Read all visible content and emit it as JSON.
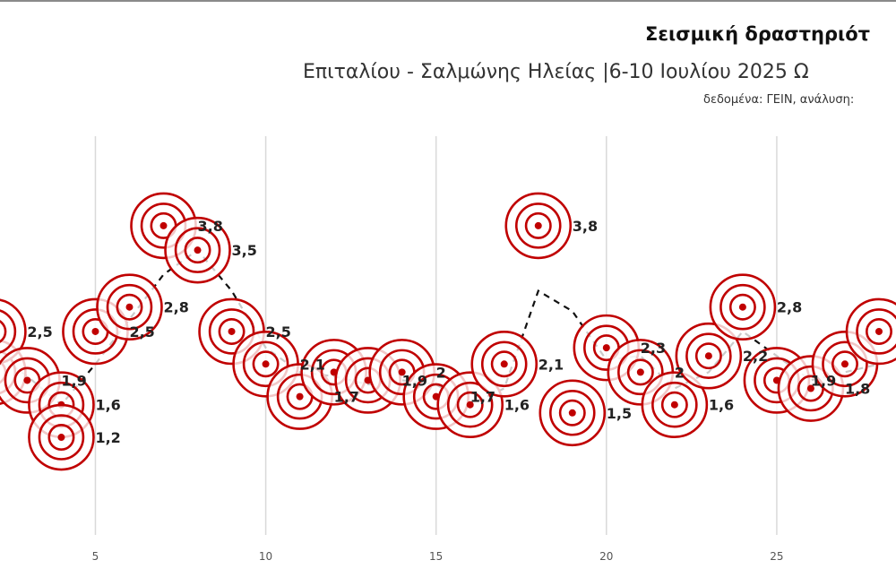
{
  "chart_data": {
    "type": "scatter",
    "title": "Σεισμική δραστηριότ",
    "subtitle": "Επιταλίου - Σαλμώνης Ηλείας |6-10 Ιουλίου 2025 Ω",
    "source": "δεδομένα: ΓΕΙΝ, ανάλυση:",
    "xlim": [
      2.2,
      28.5
    ],
    "ylim": [
      0,
      4.9
    ],
    "x_ticks": [
      5,
      10,
      15,
      20,
      25
    ],
    "grid": "vertical",
    "legend": "none",
    "colors": {
      "target": "#c00000",
      "trend": "#111111",
      "gridline": "#d9d9d9"
    },
    "points": [
      {
        "x": 2,
        "y": 2.0,
        "label": ""
      },
      {
        "x": 2,
        "y": 2.5,
        "label": "2,5"
      },
      {
        "x": 3,
        "y": 1.9,
        "label": "1,9"
      },
      {
        "x": 4,
        "y": 1.6,
        "label": "1,6"
      },
      {
        "x": 4,
        "y": 1.2,
        "label": "1,2"
      },
      {
        "x": 5,
        "y": 2.5,
        "label": "2,5"
      },
      {
        "x": 6,
        "y": 2.8,
        "label": "2,8"
      },
      {
        "x": 7,
        "y": 3.8,
        "label": "3,8"
      },
      {
        "x": 8,
        "y": 3.5,
        "label": "3,5"
      },
      {
        "x": 9,
        "y": 2.5,
        "label": "2,5"
      },
      {
        "x": 10,
        "y": 2.1,
        "label": "2,1"
      },
      {
        "x": 11,
        "y": 1.7,
        "label": "1,7"
      },
      {
        "x": 12,
        "y": 2.0,
        "label": ""
      },
      {
        "x": 13,
        "y": 1.9,
        "label": "1,9"
      },
      {
        "x": 14,
        "y": 2.0,
        "label": "2"
      },
      {
        "x": 15,
        "y": 1.7,
        "label": "1,7"
      },
      {
        "x": 16,
        "y": 1.6,
        "label": "1,6"
      },
      {
        "x": 17,
        "y": 2.1,
        "label": "2,1"
      },
      {
        "x": 18,
        "y": 3.8,
        "label": "3,8"
      },
      {
        "x": 19,
        "y": 1.5,
        "label": "1,5"
      },
      {
        "x": 20,
        "y": 2.3,
        "label": "2,3"
      },
      {
        "x": 21,
        "y": 2.0,
        "label": "2"
      },
      {
        "x": 22,
        "y": 1.6,
        "label": "1,6"
      },
      {
        "x": 23,
        "y": 2.2,
        "label": "2,2"
      },
      {
        "x": 24,
        "y": 2.8,
        "label": "2,8"
      },
      {
        "x": 25,
        "y": 1.9,
        "label": "1,9"
      },
      {
        "x": 26,
        "y": 1.8,
        "label": "1,8"
      },
      {
        "x": 27,
        "y": 2.1,
        "label": ""
      },
      {
        "x": 28,
        "y": 2.5,
        "label": ""
      }
    ],
    "trend": [
      {
        "x": 2,
        "y": 2.25
      },
      {
        "x": 3,
        "y": 1.95
      },
      {
        "x": 4,
        "y": 1.6
      },
      {
        "x": 5,
        "y": 2.1
      },
      {
        "x": 6,
        "y": 2.65
      },
      {
        "x": 7,
        "y": 3.2
      },
      {
        "x": 8,
        "y": 3.5
      },
      {
        "x": 9,
        "y": 3.0
      },
      {
        "x": 10,
        "y": 2.3
      },
      {
        "x": 11,
        "y": 2.0
      },
      {
        "x": 12,
        "y": 1.95
      },
      {
        "x": 13,
        "y": 1.85
      },
      {
        "x": 14,
        "y": 1.9
      },
      {
        "x": 15,
        "y": 1.85
      },
      {
        "x": 16,
        "y": 1.6
      },
      {
        "x": 17,
        "y": 1.8
      },
      {
        "x": 18,
        "y": 3.0
      },
      {
        "x": 19,
        "y": 2.75
      },
      {
        "x": 20,
        "y": 2.15
      },
      {
        "x": 21,
        "y": 2.2
      },
      {
        "x": 22,
        "y": 1.8
      },
      {
        "x": 23,
        "y": 2.0
      },
      {
        "x": 24,
        "y": 2.5
      },
      {
        "x": 25,
        "y": 2.2
      },
      {
        "x": 26,
        "y": 1.9
      },
      {
        "x": 27,
        "y": 2.0
      },
      {
        "x": 28,
        "y": 2.1
      }
    ]
  }
}
